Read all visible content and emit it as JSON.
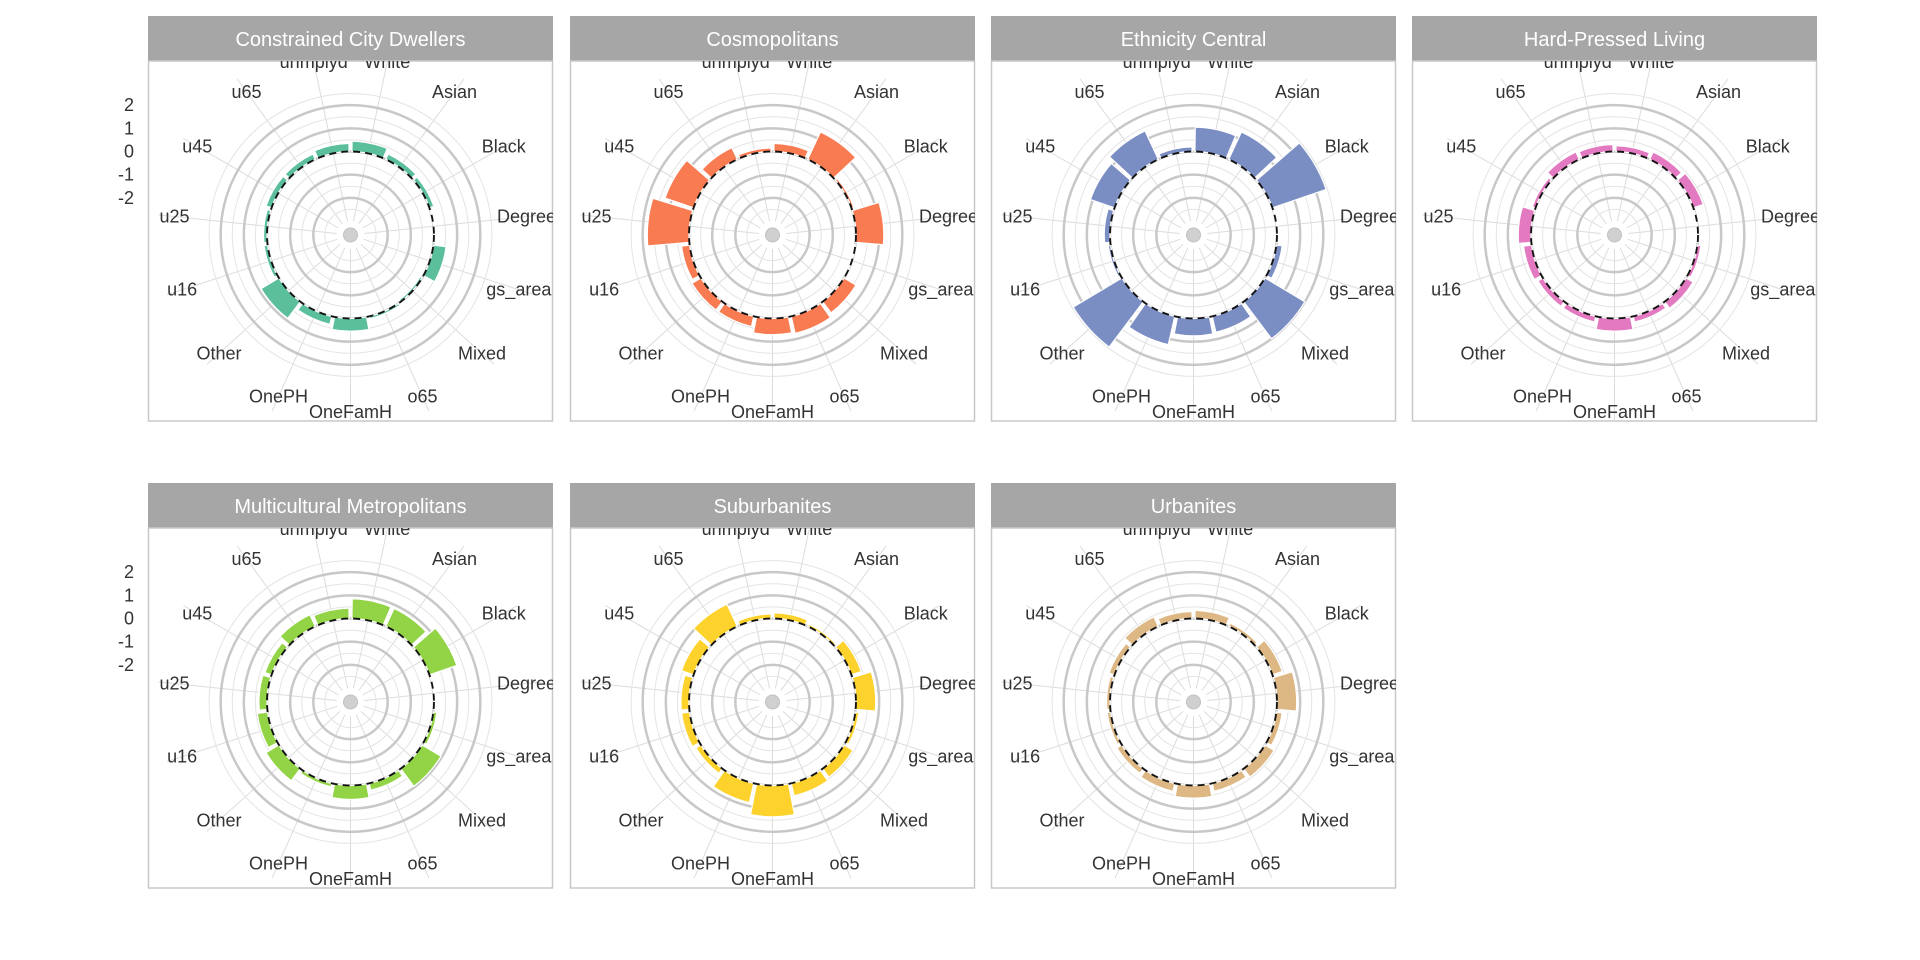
{
  "chart_data": {
    "type": "bar",
    "coordinate_system": "polar",
    "variables": [
      "White",
      "Asian",
      "Black",
      "Degree",
      "gs_area",
      "Mixed",
      "o65",
      "OneFamH",
      "OnePH",
      "Other",
      "u16",
      "u25",
      "u45",
      "u65",
      "unmplyd"
    ],
    "ylim": [
      -3,
      3
    ],
    "y_ticks": [
      "2",
      "1",
      "0",
      "-1",
      "-2"
    ],
    "y_tick_values": [
      2,
      1,
      0,
      -1,
      -2
    ],
    "reference_line": 0,
    "panels": [
      {
        "name": "Constrained City Dwellers",
        "color": "#5bbf9b",
        "values": [
          0.45,
          0.25,
          0.2,
          0.05,
          0.55,
          -0.1,
          0.1,
          0.55,
          0.35,
          0.9,
          0.15,
          0.15,
          0.25,
          0.25,
          0.35
        ]
      },
      {
        "name": "Cosmopolitans",
        "color": "#f97b52",
        "values": [
          0.35,
          1.3,
          0.1,
          1.2,
          -0.05,
          0.6,
          0.75,
          0.7,
          0.45,
          0.45,
          0.35,
          1.8,
          1.3,
          0.55,
          0.15
        ]
      },
      {
        "name": "Ethnicity Central",
        "color": "#7b8ec4",
        "values": [
          1.05,
          1.3,
          2.45,
          0.05,
          0.25,
          2.0,
          0.7,
          0.75,
          1.25,
          2.45,
          0.1,
          0.25,
          1.1,
          1.35,
          0.2
        ]
      },
      {
        "name": "Hard-Pressed Living",
        "color": "#e37ac1",
        "values": [
          0.25,
          0.35,
          0.45,
          -0.05,
          0.15,
          0.35,
          0.25,
          0.55,
          0.25,
          0.25,
          0.35,
          0.55,
          0.15,
          0.35,
          0.3
        ]
      },
      {
        "name": "Multicultural Metropolitans",
        "color": "#92d446",
        "values": [
          0.85,
          0.85,
          1.25,
          0.05,
          0.15,
          0.95,
          0.3,
          0.6,
          0.15,
          0.65,
          0.45,
          0.35,
          0.3,
          0.55,
          0.45
        ]
      },
      {
        "name": "Suburbanites",
        "color": "#fdd22c",
        "values": [
          0.25,
          0.1,
          0.45,
          0.85,
          0.15,
          0.45,
          0.55,
          1.35,
          0.85,
          0.25,
          0.35,
          0.35,
          0.55,
          1.05,
          0.2
        ]
      },
      {
        "name": "Urbanites",
        "color": "#ddb884",
        "values": [
          0.35,
          0.15,
          0.45,
          0.85,
          0.25,
          0.45,
          0.35,
          0.55,
          0.35,
          0.25,
          0.15,
          0.15,
          0.25,
          0.45,
          0.3
        ]
      }
    ]
  }
}
